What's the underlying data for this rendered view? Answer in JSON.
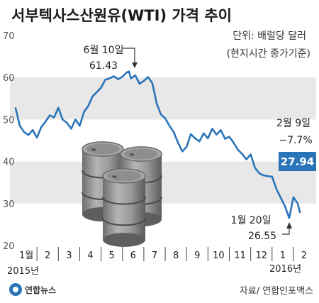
{
  "title": "서부텍사스산원유(WTI) 가격 추이",
  "unit_lines": [
    "단위: 배럴당 달러",
    "(현지시간 종가기준)"
  ],
  "logo": "연합뉴스",
  "source": "자료/ 연합인포맥스",
  "colors": {
    "line": "#2a74b8",
    "band": "#e8e8e8",
    "callout_bg": "#2a74b8",
    "barrel": "#888888"
  },
  "chart_data": {
    "type": "line",
    "ylim": [
      20,
      70
    ],
    "yticks": [
      20,
      30,
      40,
      50,
      60,
      70
    ],
    "grid": true,
    "x_ticks": [
      "1월",
      "2",
      "3",
      "4",
      "5",
      "6",
      "7",
      "8",
      "9",
      "10",
      "11",
      "12",
      "1",
      "2"
    ],
    "year_labels": [
      "2015년",
      "2016년"
    ],
    "annotations": [
      {
        "label": "6월 10일",
        "value": "61.43"
      },
      {
        "label": "1월 20일",
        "value": "26.55"
      },
      {
        "label": "2월 9일",
        "change": "−7.7%",
        "value": "27.94"
      }
    ],
    "series": [
      {
        "x": [
          0.0,
          0.2,
          0.4,
          0.6,
          0.8,
          1.0,
          1.2,
          1.4,
          1.6,
          1.8,
          2.0,
          2.2,
          2.4,
          2.6,
          2.8,
          3.0,
          3.2,
          3.4,
          3.6,
          3.8,
          4.0,
          4.2,
          4.4,
          4.6,
          4.8,
          5.0,
          5.2,
          5.3,
          5.4,
          5.6,
          5.8,
          6.0,
          6.2,
          6.4,
          6.5,
          6.6,
          6.8,
          7.0,
          7.2,
          7.4,
          7.6,
          7.8,
          8.0,
          8.2,
          8.4,
          8.6,
          8.8,
          9.0,
          9.2,
          9.4,
          9.6,
          9.8,
          10.0,
          10.2,
          10.4,
          10.6,
          10.8,
          11.0,
          11.2,
          11.4,
          11.6,
          11.8,
          12.0,
          12.2,
          12.4,
          12.6,
          12.8,
          13.0,
          13.2,
          13.3
        ],
        "y": [
          52.7,
          48.5,
          47.0,
          46.3,
          47.5,
          45.7,
          48.2,
          49.5,
          51.0,
          50.5,
          52.8,
          50.0,
          49.2,
          47.8,
          50.0,
          48.5,
          51.8,
          53.2,
          55.5,
          56.5,
          57.6,
          59.5,
          59.8,
          60.3,
          59.6,
          60.2,
          61.2,
          61.43,
          59.8,
          60.5,
          58.5,
          59.2,
          60.1,
          58.6,
          56.2,
          53.8,
          51.2,
          50.3,
          48.5,
          47.0,
          44.5,
          42.4,
          43.5,
          46.5,
          45.5,
          44.8,
          46.7,
          45.5,
          47.8,
          46.4,
          47.5,
          45.4,
          45.9,
          44.5,
          42.8,
          41.8,
          40.5,
          41.7,
          38.5,
          37.2,
          36.7,
          36.5,
          36.4,
          33.5,
          31.4,
          29.4,
          26.55,
          31.5,
          30.0,
          27.94
        ]
      }
    ]
  }
}
